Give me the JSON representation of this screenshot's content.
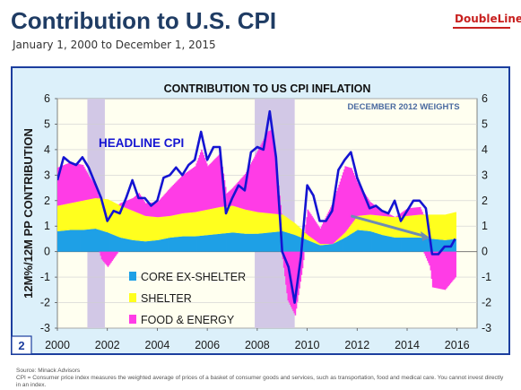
{
  "page": {
    "title": "Contribution to U.S. CPI",
    "subtitle": "January 1, 2000 to December 1, 2015",
    "logo": "DoubleLine",
    "source": "Source: Minack Advisors",
    "footnote": "CPI = Consumer price index measures the weighted average of prices of a basket of consumer goods and services, such as transportation, food and medical care. You cannot invest directly in an index."
  },
  "chart_data": {
    "type": "area",
    "title": "CONTRIBUTION TO US CPI INFLATION",
    "annotation": "DECEMBER 2012 WEIGHTS",
    "headline_label": "HEADLINE CPI",
    "ylabel": "12M%/12M PP CONTRIBUTION",
    "panel_number": "2",
    "xlim": [
      2000,
      2016.8
    ],
    "ylim": [
      -3,
      6
    ],
    "x_ticks": [
      "2000",
      "2002",
      "2004",
      "2006",
      "2008",
      "2010",
      "2012",
      "2014",
      "2016"
    ],
    "y_ticks": [
      "-3",
      "-2",
      "-1",
      "0",
      "1",
      "2",
      "3",
      "4",
      "5",
      "6"
    ],
    "grid": true,
    "legend_position": "bottom-left",
    "recessions": [
      [
        2001.2,
        2001.9
      ],
      [
        2007.9,
        2009.5
      ]
    ],
    "colors": {
      "core": "#1ea0e6",
      "shelter": "#ffff1e",
      "food_energy": "#ff3ce6",
      "headline": "#1414d2",
      "trend": "#6e8cb4",
      "recession": "#d2c8e6",
      "plot_bg": "#fffff0",
      "frame_bg": "#dcf0fa",
      "border": "#1c3e9e"
    },
    "series": [
      {
        "name": "CORE EX-SHELTER",
        "x": [
          2000,
          2000.5,
          2001,
          2001.5,
          2002,
          2002.5,
          2003,
          2003.5,
          2004,
          2004.5,
          2005,
          2005.5,
          2006,
          2006.5,
          2007,
          2007.5,
          2008,
          2008.5,
          2009,
          2009.5,
          2010,
          2010.5,
          2011,
          2011.5,
          2012,
          2012.5,
          2013,
          2013.5,
          2014,
          2014.5,
          2015,
          2015.5,
          2015.92
        ],
        "values": [
          0.8,
          0.85,
          0.85,
          0.9,
          0.75,
          0.55,
          0.45,
          0.4,
          0.45,
          0.55,
          0.6,
          0.6,
          0.65,
          0.7,
          0.75,
          0.7,
          0.7,
          0.75,
          0.8,
          0.65,
          0.45,
          0.25,
          0.3,
          0.55,
          0.85,
          0.8,
          0.65,
          0.55,
          0.55,
          0.55,
          0.5,
          0.45,
          0.5
        ]
      },
      {
        "name": "SHELTER",
        "x": [
          2000,
          2000.5,
          2001,
          2001.5,
          2002,
          2002.5,
          2003,
          2003.5,
          2004,
          2004.5,
          2005,
          2005.5,
          2006,
          2006.5,
          2007,
          2007.5,
          2008,
          2008.5,
          2009,
          2009.5,
          2010,
          2010.5,
          2011,
          2011.5,
          2012,
          2012.5,
          2013,
          2013.5,
          2014,
          2014.5,
          2015,
          2015.5,
          2015.92
        ],
        "values": [
          1.0,
          1.05,
          1.15,
          1.2,
          1.3,
          1.25,
          1.15,
          1.0,
          0.9,
          0.85,
          0.9,
          0.95,
          1.0,
          1.05,
          1.05,
          0.95,
          0.85,
          0.75,
          0.65,
          0.45,
          0.2,
          0.05,
          0.0,
          0.2,
          0.55,
          0.65,
          0.75,
          0.8,
          0.85,
          0.9,
          0.95,
          1.0,
          1.05
        ]
      },
      {
        "name": "FOOD & ENERGY",
        "x": [
          2000,
          2000.5,
          2001,
          2001.25,
          2001.5,
          2001.75,
          2002,
          2002.5,
          2003,
          2003.25,
          2003.5,
          2004,
          2004.5,
          2005,
          2005.5,
          2005.75,
          2006,
          2006.5,
          2006.75,
          2007,
          2007.5,
          2008,
          2008.4,
          2008.6,
          2008.9,
          2009.2,
          2009.5,
          2009.8,
          2010,
          2010.5,
          2011,
          2011.5,
          2011.75,
          2012,
          2012.5,
          2013,
          2013.5,
          2014,
          2014.5,
          2014.9,
          2015,
          2015.5,
          2015.92
        ],
        "values": [
          1.5,
          1.6,
          1.4,
          0.9,
          0.5,
          -0.3,
          -0.6,
          0.1,
          0.5,
          0.8,
          0.5,
          0.6,
          1.1,
          1.5,
          1.8,
          2.4,
          1.7,
          2.1,
          0.5,
          0.7,
          1.4,
          2.4,
          3.2,
          3.3,
          0.5,
          -1.9,
          -2.5,
          -0.6,
          1.0,
          0.6,
          1.6,
          2.6,
          2.2,
          1.3,
          0.5,
          0.2,
          0.0,
          0.3,
          0.3,
          -0.6,
          -1.4,
          -1.5,
          -1.0
        ]
      },
      {
        "name": "HEADLINE CPI",
        "x": [
          2000,
          2000.25,
          2000.5,
          2000.75,
          2001,
          2001.25,
          2001.5,
          2001.75,
          2002,
          2002.25,
          2002.5,
          2002.75,
          2003,
          2003.25,
          2003.5,
          2003.75,
          2004,
          2004.25,
          2004.5,
          2004.75,
          2005,
          2005.25,
          2005.5,
          2005.75,
          2006,
          2006.25,
          2006.5,
          2006.75,
          2007,
          2007.25,
          2007.5,
          2007.75,
          2008,
          2008.25,
          2008.5,
          2008.75,
          2009,
          2009.25,
          2009.5,
          2009.75,
          2010,
          2010.25,
          2010.5,
          2010.75,
          2011,
          2011.25,
          2011.5,
          2011.75,
          2012,
          2012.25,
          2012.5,
          2012.75,
          2013,
          2013.25,
          2013.5,
          2013.75,
          2014,
          2014.25,
          2014.5,
          2014.75,
          2015,
          2015.25,
          2015.5,
          2015.75,
          2015.92
        ],
        "values": [
          2.8,
          3.7,
          3.5,
          3.4,
          3.7,
          3.3,
          2.7,
          2.1,
          1.2,
          1.6,
          1.5,
          2.1,
          2.8,
          2.1,
          2.1,
          1.8,
          2.0,
          2.9,
          3.0,
          3.3,
          3.0,
          3.4,
          3.6,
          4.7,
          3.6,
          4.1,
          4.1,
          1.5,
          2.1,
          2.6,
          2.4,
          3.9,
          4.1,
          4.0,
          5.5,
          3.7,
          0.0,
          -0.6,
          -2.0,
          -0.2,
          2.6,
          2.2,
          1.2,
          1.2,
          1.6,
          3.2,
          3.6,
          3.9,
          2.9,
          2.3,
          1.7,
          1.8,
          1.6,
          1.5,
          2.0,
          1.2,
          1.6,
          2.0,
          2.0,
          1.7,
          -0.1,
          -0.1,
          0.2,
          0.2,
          0.5
        ]
      }
    ],
    "trend_arrow": {
      "x": [
        2011.75,
        2014.9
      ],
      "values": [
        1.4,
        0.55
      ]
    }
  }
}
